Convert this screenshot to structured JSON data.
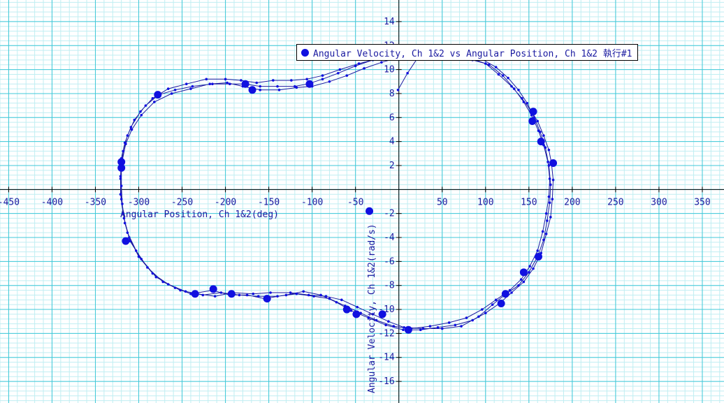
{
  "chart_data": {
    "type": "scatter",
    "xlabel": "Angular Position, Ch 1&2(deg)",
    "ylabel": "Angular Velocity, Ch 1&2(rad/s)",
    "xlim": [
      -460,
      375
    ],
    "ylim": [
      -17.8,
      15.8
    ],
    "x_ticks": [
      -450,
      -400,
      -350,
      -300,
      -250,
      -200,
      -150,
      -100,
      -50,
      50,
      100,
      150,
      200,
      250,
      300,
      350
    ],
    "y_ticks": [
      -16,
      -14,
      -12,
      -10,
      -8,
      -6,
      -4,
      -2,
      2,
      4,
      6,
      8,
      10,
      12,
      14
    ],
    "grid": true,
    "legend_position": "top-center",
    "colors": {
      "series": "#1010e0",
      "line": "#1a1aa0",
      "grid_major": "#40c8d8",
      "grid_minor": "#c0eef2"
    },
    "series": [
      {
        "name": "Angular Velocity, Ch 1&2 vs Angular Position, Ch 1&2 執行#1",
        "points": [
          [
            -1,
            8.3
          ],
          [
            10,
            9.7
          ],
          [
            22,
            11.0
          ],
          [
            45,
            11.0
          ],
          [
            70,
            11.0
          ],
          [
            85,
            10.8
          ],
          [
            100,
            10.5
          ],
          [
            115,
            9.6
          ],
          [
            130,
            8.6
          ],
          [
            142,
            7.6
          ],
          [
            152,
            6.6
          ],
          [
            160,
            5.7
          ],
          [
            167,
            4.5
          ],
          [
            173,
            3.3
          ],
          [
            176,
            2.2
          ],
          [
            178,
            0.8
          ],
          [
            177,
            -0.8
          ],
          [
            175,
            -2.3
          ],
          [
            170,
            -3.7
          ],
          [
            164,
            -5.3
          ],
          [
            155,
            -6.6
          ],
          [
            144,
            -7.7
          ],
          [
            130,
            -8.6
          ],
          [
            116,
            -9.5
          ],
          [
            100,
            -10.3
          ],
          [
            85,
            -10.9
          ],
          [
            65,
            -11.3
          ],
          [
            45,
            -11.5
          ],
          [
            25,
            -11.7
          ],
          [
            5,
            -11.7
          ],
          [
            -15,
            -11.3
          ],
          [
            -35,
            -10.7
          ],
          [
            -55,
            -10.1
          ],
          [
            -72,
            -9.4
          ],
          [
            -90,
            -8.8
          ],
          [
            -110,
            -8.5
          ],
          [
            -130,
            -8.8
          ],
          [
            -155,
            -9.1
          ],
          [
            -175,
            -8.8
          ],
          [
            -195,
            -8.8
          ],
          [
            -215,
            -8.4
          ],
          [
            -240,
            -8.7
          ],
          [
            -258,
            -8.2
          ],
          [
            -280,
            -7.3
          ],
          [
            -297,
            -5.8
          ],
          [
            -310,
            -4.3
          ],
          [
            -316,
            -2.8
          ],
          [
            -319,
            -1.2
          ],
          [
            -320,
            0.3
          ],
          [
            -320,
            1.8
          ],
          [
            -318,
            3.2
          ],
          [
            -313,
            4.5
          ],
          [
            -305,
            5.8
          ],
          [
            -292,
            7.0
          ],
          [
            -277,
            7.9
          ],
          [
            -258,
            8.3
          ],
          [
            -238,
            8.6
          ],
          [
            -215,
            8.8
          ],
          [
            -195,
            8.8
          ],
          [
            -178,
            8.8
          ],
          [
            -160,
            8.6
          ],
          [
            -140,
            8.6
          ],
          [
            -120,
            8.6
          ],
          [
            -105,
            8.8
          ],
          [
            -88,
            9.2
          ],
          [
            -70,
            9.7
          ],
          [
            -50,
            10.3
          ],
          [
            -30,
            10.8
          ],
          [
            -10,
            11.0
          ],
          [
            10,
            11.3
          ],
          [
            40,
            11.2
          ],
          [
            70,
            11.1
          ],
          [
            95,
            10.9
          ],
          [
            112,
            10.2
          ],
          [
            126,
            9.3
          ],
          [
            138,
            8.3
          ],
          [
            148,
            7.2
          ],
          [
            156,
            6.0
          ],
          [
            163,
            4.8
          ],
          [
            169,
            3.5
          ],
          [
            173,
            2.0
          ],
          [
            175,
            0.4
          ],
          [
            174,
            -1.1
          ],
          [
            171,
            -2.6
          ],
          [
            167,
            -4.2
          ],
          [
            160,
            -5.6
          ],
          [
            150,
            -6.9
          ],
          [
            138,
            -8.0
          ],
          [
            122,
            -8.8
          ],
          [
            108,
            -9.6
          ],
          [
            92,
            -10.6
          ],
          [
            72,
            -11.4
          ],
          [
            50,
            -11.6
          ],
          [
            28,
            -11.6
          ],
          [
            6,
            -11.5
          ],
          [
            -12,
            -11.0
          ],
          [
            -30,
            -10.4
          ],
          [
            -48,
            -9.8
          ],
          [
            -66,
            -9.2
          ],
          [
            -84,
            -8.9
          ],
          [
            -104,
            -8.8
          ],
          [
            -125,
            -8.6
          ],
          [
            -148,
            -8.6
          ],
          [
            -168,
            -8.7
          ],
          [
            -192,
            -8.6
          ],
          [
            -212,
            -8.9
          ],
          [
            -232,
            -8.7
          ],
          [
            -252,
            -8.4
          ],
          [
            -272,
            -7.7
          ],
          [
            -290,
            -6.5
          ],
          [
            -303,
            -5.1
          ],
          [
            -313,
            -3.6
          ],
          [
            -318,
            -2.0
          ],
          [
            -321,
            -0.4
          ],
          [
            -321,
            1.1
          ],
          [
            -320,
            2.6
          ],
          [
            -316,
            3.9
          ],
          [
            -309,
            5.2
          ],
          [
            -298,
            6.5
          ],
          [
            -284,
            7.6
          ],
          [
            -266,
            8.4
          ],
          [
            -245,
            8.8
          ],
          [
            -222,
            9.2
          ],
          [
            -200,
            9.2
          ],
          [
            -182,
            9.1
          ],
          [
            -164,
            8.9
          ],
          [
            -145,
            9.1
          ],
          [
            -124,
            9.1
          ],
          [
            -106,
            9.2
          ],
          [
            -88,
            9.5
          ],
          [
            -68,
            10.0
          ],
          [
            -46,
            10.5
          ],
          [
            -24,
            10.9
          ],
          [
            -4,
            11.1
          ],
          [
            20,
            11.0
          ],
          [
            50,
            10.9
          ],
          [
            80,
            11.0
          ],
          [
            104,
            10.4
          ],
          [
            120,
            9.5
          ],
          [
            133,
            8.4
          ],
          [
            144,
            7.3
          ],
          [
            153,
            6.2
          ],
          [
            161,
            4.9
          ],
          [
            167,
            3.7
          ],
          [
            172,
            2.3
          ],
          [
            174,
            0.9
          ],
          [
            173,
            -0.6
          ],
          [
            170,
            -2.0
          ],
          [
            166,
            -3.5
          ],
          [
            160,
            -5.1
          ],
          [
            151,
            -6.4
          ],
          [
            141,
            -7.5
          ],
          [
            128,
            -8.4
          ],
          [
            112,
            -9.2
          ],
          [
            96,
            -10.0
          ],
          [
            78,
            -10.7
          ],
          [
            58,
            -11.1
          ],
          [
            36,
            -11.4
          ],
          [
            14,
            -11.6
          ],
          [
            -6,
            -11.4
          ],
          [
            -26,
            -10.9
          ],
          [
            -44,
            -10.3
          ],
          [
            -62,
            -9.7
          ],
          [
            -80,
            -9.1
          ],
          [
            -98,
            -8.9
          ],
          [
            -118,
            -8.7
          ],
          [
            -140,
            -8.9
          ],
          [
            -162,
            -8.9
          ],
          [
            -184,
            -8.8
          ],
          [
            -205,
            -8.6
          ],
          [
            -226,
            -8.8
          ],
          [
            -246,
            -8.5
          ],
          [
            -266,
            -7.9
          ],
          [
            -284,
            -7.0
          ],
          [
            -300,
            -5.6
          ],
          [
            -311,
            -4.0
          ],
          [
            -317,
            -2.4
          ],
          [
            -320,
            -0.8
          ],
          [
            -321,
            0.9
          ],
          [
            -319,
            2.4
          ],
          [
            -315,
            3.8
          ],
          [
            -308,
            5.0
          ],
          [
            -297,
            6.2
          ],
          [
            -282,
            7.3
          ],
          [
            -262,
            8.0
          ],
          [
            -240,
            8.4
          ],
          [
            -218,
            8.8
          ],
          [
            -198,
            8.9
          ],
          [
            -180,
            8.6
          ],
          [
            -160,
            8.3
          ],
          [
            -138,
            8.3
          ],
          [
            -118,
            8.5
          ],
          [
            -100,
            8.6
          ],
          [
            -80,
            9.0
          ],
          [
            -60,
            9.5
          ],
          [
            -40,
            10.1
          ],
          [
            -20,
            10.6
          ],
          [
            0,
            11.0
          ]
        ],
        "markers": [
          [
            -278,
            7.9
          ],
          [
            -177,
            8.8
          ],
          [
            -169,
            8.3
          ],
          [
            -103,
            8.8
          ],
          [
            -320,
            2.3
          ],
          [
            -320,
            1.8
          ],
          [
            -315,
            -4.3
          ],
          [
            -235,
            -8.7
          ],
          [
            -214,
            -8.3
          ],
          [
            -193,
            -8.7
          ],
          [
            -152,
            -9.1
          ],
          [
            -60,
            -10.0
          ],
          [
            -49,
            -10.4
          ],
          [
            -19,
            -10.4
          ],
          [
            -34,
            -1.8
          ],
          [
            11,
            -11.7
          ],
          [
            155,
            6.5
          ],
          [
            154,
            5.7
          ],
          [
            164,
            4.0
          ],
          [
            178,
            2.2
          ],
          [
            161,
            -5.6
          ],
          [
            144,
            -6.9
          ],
          [
            123,
            -8.7
          ],
          [
            118,
            -9.5
          ]
        ]
      }
    ]
  }
}
